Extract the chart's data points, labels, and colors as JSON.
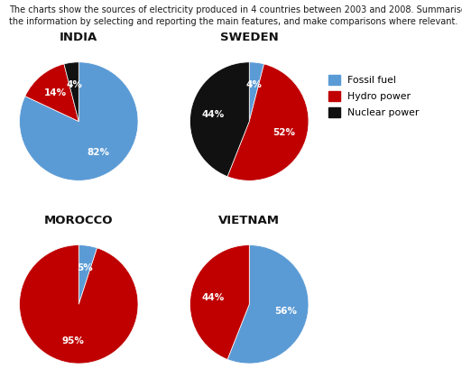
{
  "title_line1": "The charts show the sources of electricity produced in 4 countries between 2003 and 2008. Summarise",
  "title_line2": "the information by selecting and reporting the main features, and make comparisons where relevant.",
  "countries": [
    "INDIA",
    "SWEDEN",
    "MOROCCO",
    "VIETNAM"
  ],
  "data": {
    "INDIA": {
      "Fossil fuel": 82,
      "Hydro power": 14,
      "Nuclear power": 4
    },
    "SWEDEN": {
      "Fossil fuel": 4,
      "Hydro power": 52,
      "Nuclear power": 44
    },
    "MOROCCO": {
      "Fossil fuel": 5,
      "Hydro power": 95,
      "Nuclear power": 0
    },
    "VIETNAM": {
      "Fossil fuel": 56,
      "Hydro power": 44,
      "Nuclear power": 0
    }
  },
  "colors": {
    "Fossil fuel": "#5B9BD5",
    "Hydro power": "#C00000",
    "Nuclear power": "#111111"
  },
  "legend_labels": [
    "Fossil fuel",
    "Hydro power",
    "Nuclear power"
  ],
  "background_color": "#FFFFFF"
}
